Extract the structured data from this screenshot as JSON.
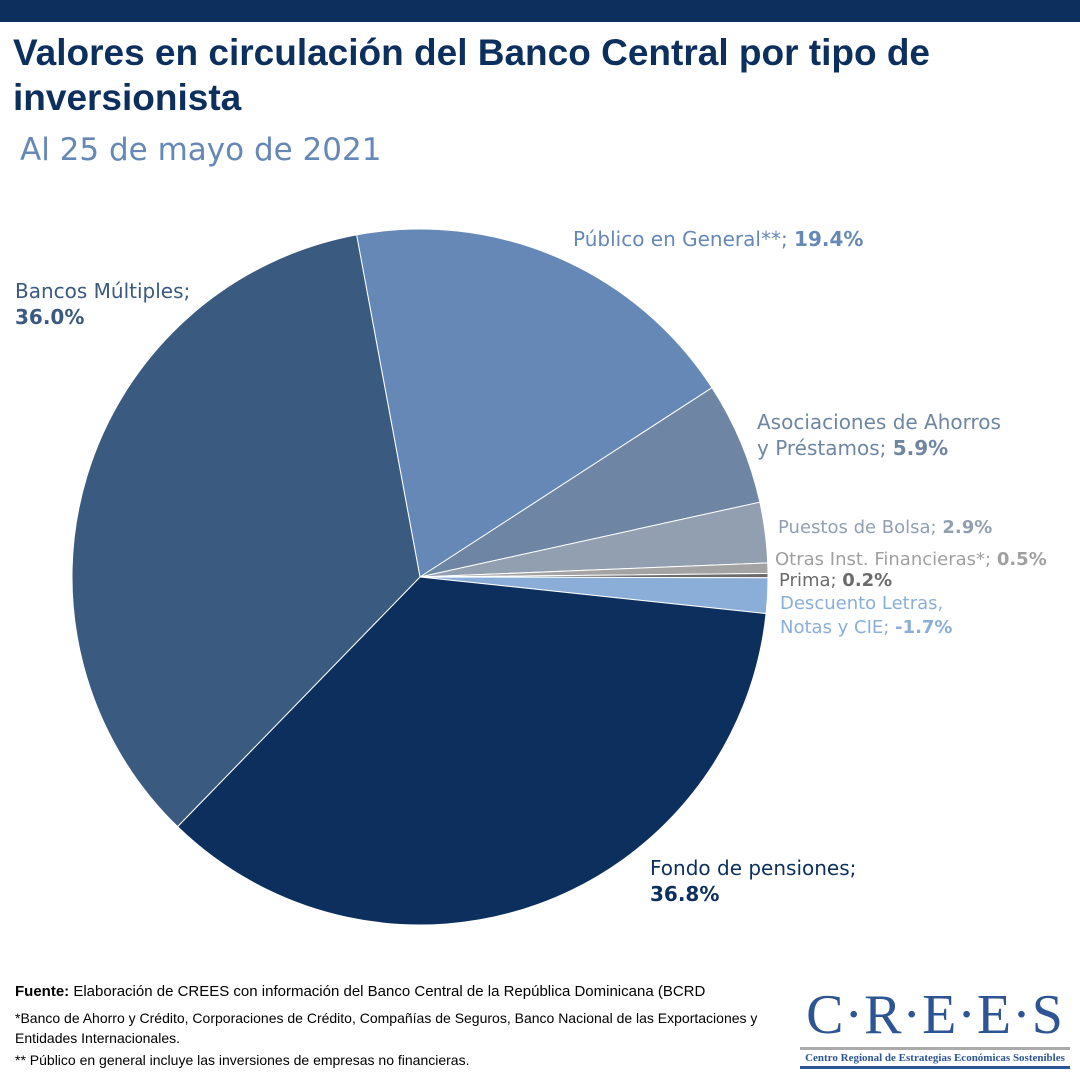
{
  "chart_data": {
    "type": "pie",
    "title": "Valores en circulación del Banco Central por tipo de inversionista",
    "subtitle": "Al 25 de mayo de 2021",
    "slices": [
      {
        "name": "Público en General**",
        "value": 19.4,
        "label": "19.4%",
        "color": "#6688b6"
      },
      {
        "name": "Asociaciones de Ahorros y Préstamos",
        "value": 5.9,
        "label": "5.9%",
        "color": "#6e86a4"
      },
      {
        "name": "Puestos de Bolsa",
        "value": 2.9,
        "label": "2.9%",
        "color": "#919fb0"
      },
      {
        "name": "Otras Inst. Financieras*",
        "value": 0.5,
        "label": "0.5%",
        "color": "#a3a3a3"
      },
      {
        "name": "Prima",
        "value": 0.2,
        "label": "0.2%",
        "color": "#6b6b6b"
      },
      {
        "name": "Descuento Letras, Notas y CIE",
        "value": -1.7,
        "label": "-1.7%",
        "color": "#8aaed8"
      },
      {
        "name": "Fondo de pensiones",
        "value": 36.8,
        "label": "36.8%",
        "color": "#0c2f5e"
      },
      {
        "name": "Bancos Múltiples",
        "value": 36.0,
        "label": "36.0%",
        "color": "#3a5a80"
      }
    ]
  },
  "labels": {
    "l0a": "Público en General**; ",
    "l1a": "Asociaciones de Ahorros",
    "l1b": "y Préstamos; ",
    "l2a": "Puestos de Bolsa; ",
    "l3a": "Otras Inst. Financieras*; ",
    "l4a": "Prima; ",
    "l5a": "Descuento Letras,",
    "l5b": "Notas y CIE; ",
    "l6a": "Fondo de pensiones;",
    "l7a": "Bancos Múltiples;"
  },
  "footer": {
    "source_label": "Fuente:",
    "source_text": " Elaboración de CREES con información del Banco Central de la República Dominicana (BCRD",
    "note1": "*Banco de Ahorro y Crédito, Corporaciones de Crédito, Compañías de Seguros, Banco Nacional de las Exportaciones y Entidades Internacionales.",
    "note2": "** Público en general incluye las inversiones de empresas no financieras."
  },
  "logo": {
    "name": "C·R·E·E·S",
    "tagline": "Centro Regional de Estrategias Económicas Sostenibles"
  }
}
